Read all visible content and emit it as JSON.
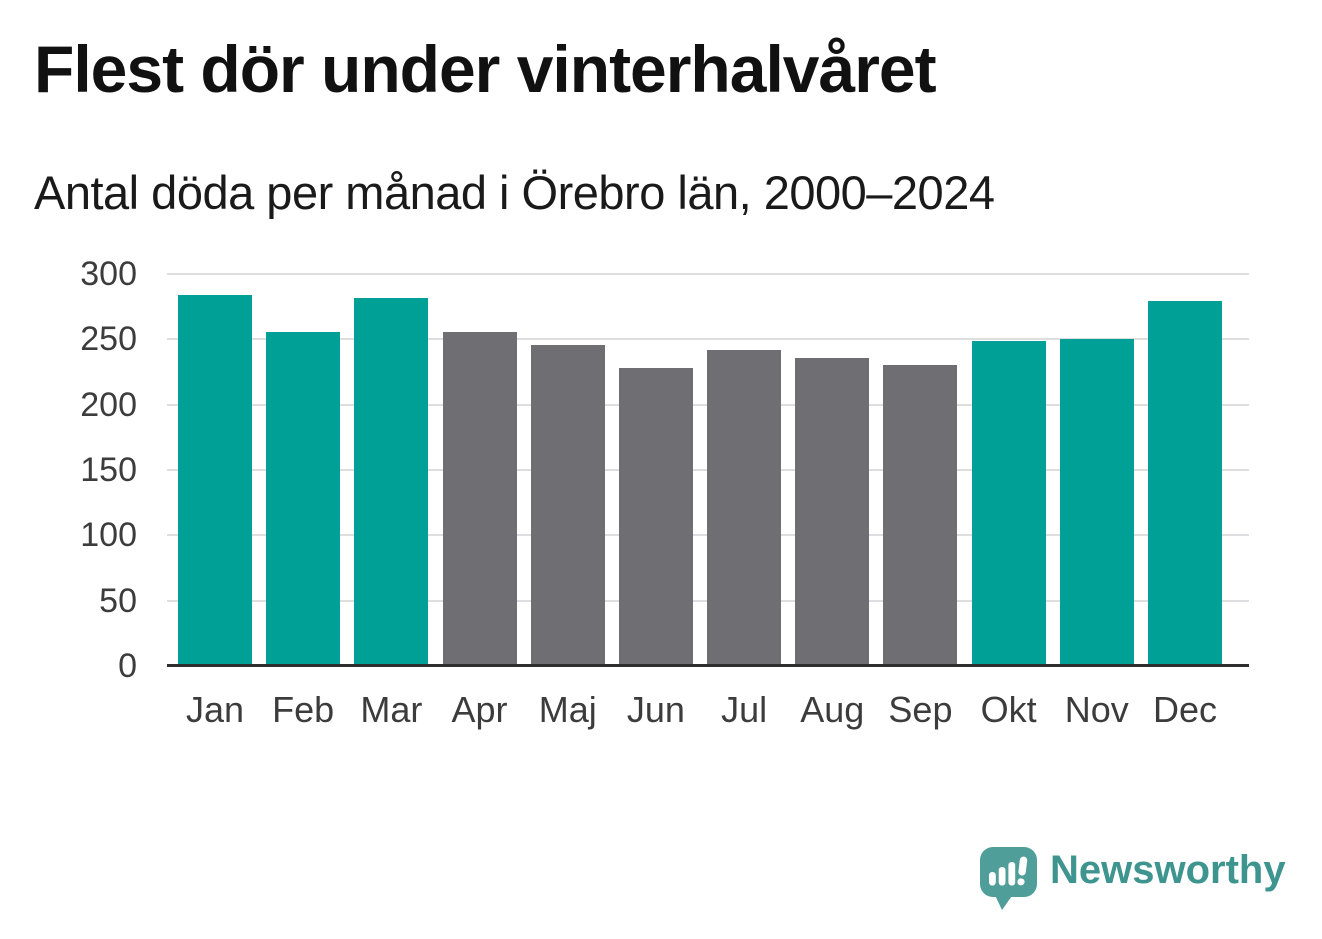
{
  "header": {
    "title": "Flest dör under vinterhalvåret",
    "subtitle": "Antal döda per månad i Örebro län, 2000–2024"
  },
  "chart_data": {
    "type": "bar",
    "title": "Flest dör under vinterhalvåret",
    "subtitle": "Antal döda per månad i Örebro län, 2000–2024",
    "categories": [
      "Jan",
      "Feb",
      "Mar",
      "Apr",
      "Maj",
      "Jun",
      "Jul",
      "Aug",
      "Sep",
      "Okt",
      "Nov",
      "Dec"
    ],
    "values": [
      284,
      256,
      282,
      256,
      246,
      228,
      242,
      236,
      230,
      249,
      250,
      279
    ],
    "bar_groups": [
      "winter",
      "winter",
      "winter",
      "summer",
      "summer",
      "summer",
      "summer",
      "summer",
      "summer",
      "winter",
      "winter",
      "winter"
    ],
    "group_colors": {
      "winter": "#00a096",
      "summer": "#6f6e73"
    },
    "ylim": [
      0,
      300
    ],
    "y_ticks": [
      0,
      50,
      100,
      150,
      200,
      250,
      300
    ],
    "grid": true,
    "legend": "none",
    "xlabel": "",
    "ylabel": ""
  },
  "footer": {
    "brand": "Newsworthy",
    "logo_icon": "newsworthy-speech-bubble-chart-icon"
  },
  "theme": {
    "background": "#ffffff",
    "title_color": "#111111",
    "subtitle_color": "#1a1a1a",
    "axis_text_color": "#3c3c3c",
    "gridline_color": "#dedee0",
    "axis_line_color": "#2d2d2d",
    "logo_mark_color": "#4f9e99",
    "logo_text_color": "#3e948f"
  }
}
